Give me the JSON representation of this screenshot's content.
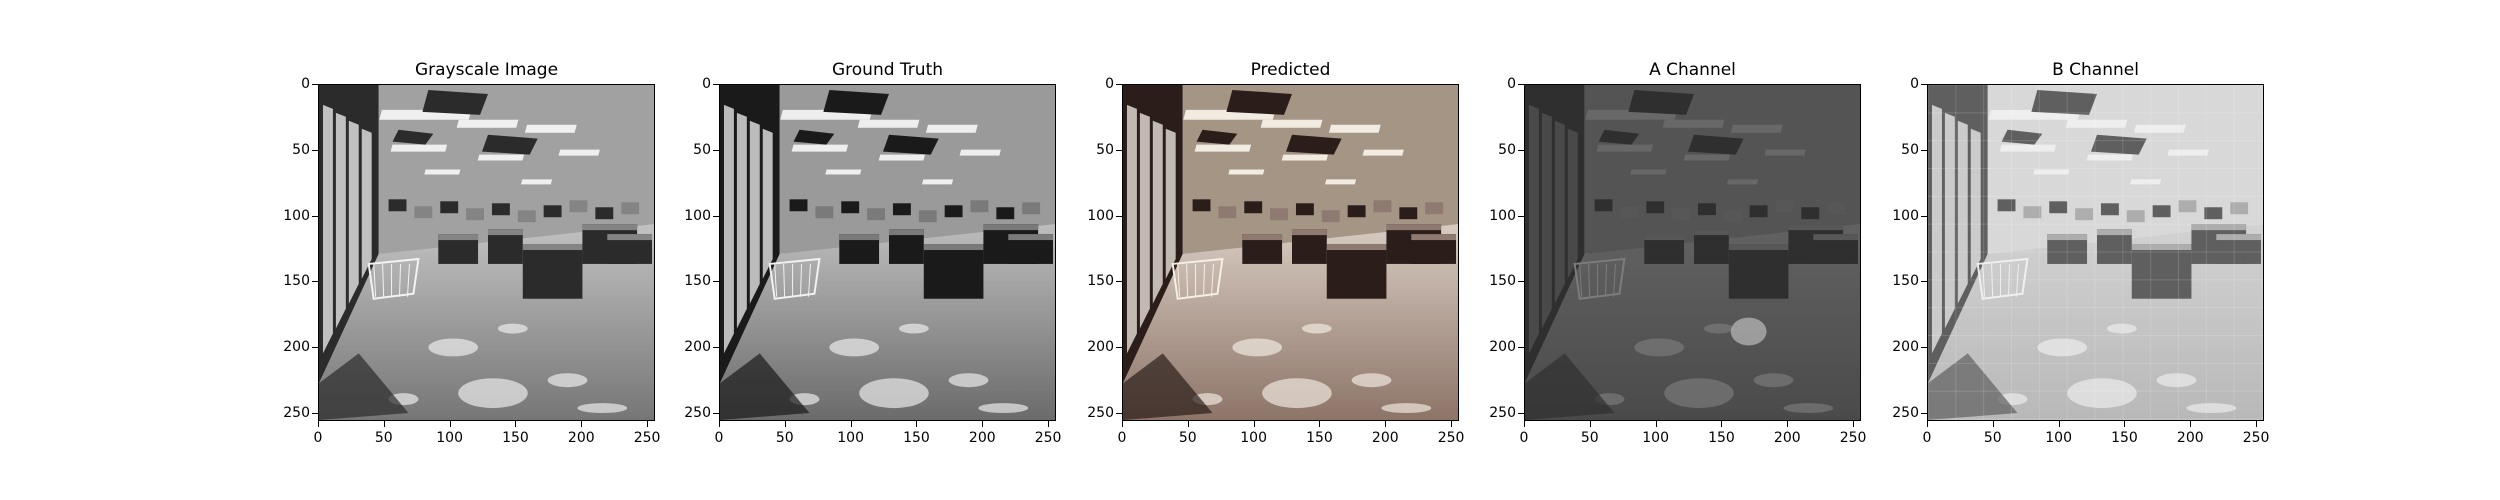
{
  "panels": [
    {
      "title": "Grayscale Image",
      "variant": "gray"
    },
    {
      "title": "Ground Truth",
      "variant": "truth"
    },
    {
      "title": "Predicted",
      "variant": "pred"
    },
    {
      "title": "A Channel",
      "variant": "a"
    },
    {
      "title": "B Channel",
      "variant": "b"
    }
  ],
  "axes": {
    "x_ticks": [
      "0",
      "50",
      "100",
      "150",
      "200",
      "250"
    ],
    "y_ticks": [
      "0",
      "50",
      "100",
      "150",
      "200",
      "250"
    ],
    "x_tick_values": [
      0,
      50,
      100,
      150,
      200,
      250
    ],
    "y_tick_values": [
      0,
      50,
      100,
      150,
      200,
      250
    ],
    "xlim": [
      0,
      256
    ],
    "ylim": [
      256,
      0
    ]
  },
  "colors": {
    "background": "#ffffff",
    "axis": "#000000",
    "gray_floor": "#8a8a8a",
    "pred_tint": "#b89a86",
    "channel_a_base": "#5a5a5a",
    "channel_b_base": "#bdbdbd"
  }
}
